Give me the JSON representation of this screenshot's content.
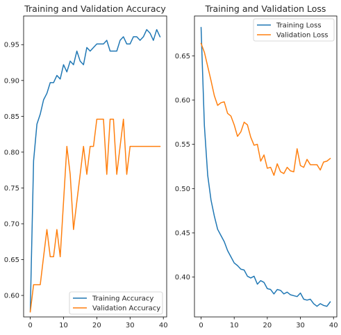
{
  "colors": {
    "training": "#1f77b4",
    "validation": "#ff7f0e"
  },
  "chart_data": [
    {
      "type": "line",
      "title": "Training and Validation Accuracy",
      "xlabel": "",
      "ylabel": "",
      "xlim": [
        -2,
        41
      ],
      "ylim": [
        0.57,
        0.99
      ],
      "xticks": [
        0,
        10,
        20,
        30,
        40
      ],
      "yticks": [
        0.6,
        0.65,
        0.7,
        0.75,
        0.8,
        0.85,
        0.9,
        0.95
      ],
      "ytick_labels": [
        "0.60",
        "0.65",
        "0.70",
        "0.75",
        "0.80",
        "0.85",
        "0.90",
        "0.95"
      ],
      "grid": false,
      "legend_position": "lower-right",
      "x": [
        0,
        1,
        2,
        3,
        4,
        5,
        6,
        7,
        8,
        9,
        10,
        11,
        12,
        13,
        14,
        15,
        16,
        17,
        18,
        19,
        20,
        21,
        22,
        23,
        24,
        25,
        26,
        27,
        28,
        29,
        30,
        31,
        32,
        33,
        34,
        35,
        36,
        37,
        38,
        39
      ],
      "series": [
        {
          "name": "Training Accuracy",
          "color_key": "training",
          "values": [
            0.578,
            0.788,
            0.839,
            0.853,
            0.873,
            0.882,
            0.897,
            0.897,
            0.907,
            0.902,
            0.922,
            0.912,
            0.927,
            0.922,
            0.941,
            0.927,
            0.922,
            0.946,
            0.941,
            0.946,
            0.951,
            0.951,
            0.951,
            0.956,
            0.941,
            0.941,
            0.941,
            0.956,
            0.961,
            0.951,
            0.951,
            0.961,
            0.961,
            0.956,
            0.961,
            0.971,
            0.966,
            0.956,
            0.971,
            0.961
          ]
        },
        {
          "name": "Validation Accuracy",
          "color_key": "validation",
          "values": [
            0.577,
            0.615,
            0.615,
            0.615,
            0.654,
            0.692,
            0.654,
            0.654,
            0.692,
            0.654,
            0.731,
            0.808,
            0.769,
            0.692,
            0.731,
            0.769,
            0.808,
            0.769,
            0.808,
            0.808,
            0.846,
            0.846,
            0.846,
            0.769,
            0.846,
            0.846,
            0.769,
            0.808,
            0.846,
            0.769,
            0.808,
            0.808,
            0.808,
            0.808,
            0.808,
            0.808,
            0.808,
            0.808,
            0.808,
            0.808
          ]
        }
      ]
    },
    {
      "type": "line",
      "title": "Training and Validation Loss",
      "xlabel": "",
      "ylabel": "",
      "xlim": [
        -2,
        41
      ],
      "ylim": [
        0.355,
        0.695
      ],
      "xticks": [
        0,
        10,
        20,
        30,
        40
      ],
      "yticks": [
        0.4,
        0.45,
        0.5,
        0.55,
        0.6,
        0.65
      ],
      "ytick_labels": [
        "0.40",
        "0.45",
        "0.50",
        "0.55",
        "0.60",
        "0.65"
      ],
      "grid": false,
      "legend_position": "upper-right",
      "x": [
        0,
        1,
        2,
        3,
        4,
        5,
        6,
        7,
        8,
        9,
        10,
        11,
        12,
        13,
        14,
        15,
        16,
        17,
        18,
        19,
        20,
        21,
        22,
        23,
        24,
        25,
        26,
        27,
        28,
        29,
        30,
        31,
        32,
        33,
        34,
        35,
        36,
        37,
        38,
        39
      ],
      "series": [
        {
          "name": "Training Loss",
          "color_key": "training",
          "values": [
            0.682,
            0.571,
            0.515,
            0.487,
            0.469,
            0.454,
            0.447,
            0.44,
            0.43,
            0.423,
            0.416,
            0.413,
            0.409,
            0.408,
            0.401,
            0.399,
            0.401,
            0.392,
            0.396,
            0.394,
            0.387,
            0.386,
            0.381,
            0.386,
            0.385,
            0.381,
            0.383,
            0.38,
            0.379,
            0.378,
            0.382,
            0.375,
            0.374,
            0.375,
            0.37,
            0.367,
            0.37,
            0.368,
            0.367,
            0.372
          ]
        },
        {
          "name": "Validation Loss",
          "color_key": "validation",
          "values": [
            0.664,
            0.654,
            0.638,
            0.622,
            0.605,
            0.594,
            0.597,
            0.598,
            0.585,
            0.582,
            0.572,
            0.559,
            0.564,
            0.575,
            0.572,
            0.558,
            0.549,
            0.55,
            0.531,
            0.538,
            0.523,
            0.524,
            0.515,
            0.528,
            0.519,
            0.517,
            0.524,
            0.52,
            0.519,
            0.545,
            0.526,
            0.524,
            0.533,
            0.527,
            0.527,
            0.527,
            0.521,
            0.53,
            0.531,
            0.534
          ]
        }
      ]
    }
  ]
}
